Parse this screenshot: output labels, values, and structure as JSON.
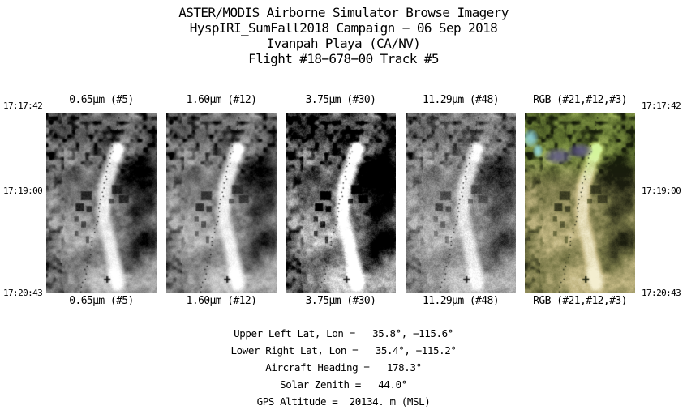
{
  "header": {
    "lines": [
      "ASTER/MODIS Airborne Simulator Browse Imagery",
      "HyspIRI_SumFall2018 Campaign − 06 Sep 2018",
      "Ivanpah Playa (CA/NV)",
      "Flight #18−678−00 Track #5"
    ]
  },
  "strips": [
    {
      "label": "0.65μm (#5)"
    },
    {
      "label": "1.60μm (#12)"
    },
    {
      "label": "3.75μm (#30)"
    },
    {
      "label": "11.29μm (#48)"
    },
    {
      "label": "RGB (#21,#12,#3)"
    }
  ],
  "timestamps": {
    "start": "17:17:42",
    "middle": "17:19:00",
    "end": "17:20:43"
  },
  "footer": {
    "lines": [
      "Upper Left Lat, Lon =   35.8°, −115.6°",
      "Lower Right Lat, Lon =   35.4°, −115.2°",
      "Aircraft Heading =   178.3°",
      "Solar Zenith =   44.0°",
      "GPS Altitude =  20134. m (MSL)"
    ]
  }
}
